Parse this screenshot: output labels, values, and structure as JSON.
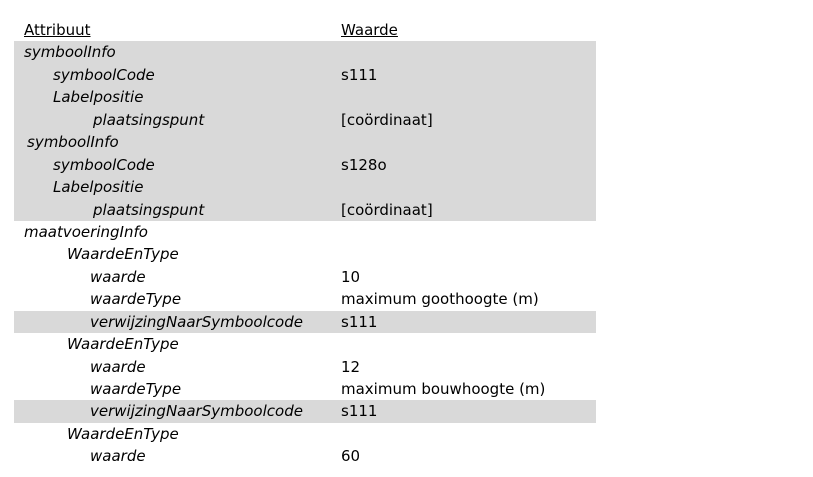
{
  "header": {
    "attribute_label": "Attribuut",
    "value_label": "Waarde"
  },
  "rows": [
    {
      "attr": "symboolInfo",
      "value": ""
    },
    {
      "attr": "symboolCode",
      "value": "s111"
    },
    {
      "attr": "Labelpositie",
      "value": ""
    },
    {
      "attr": "plaatsingspunt",
      "value": "[coördinaat]"
    },
    {
      "attr": "symboolInfo",
      "value": ""
    },
    {
      "attr": "symboolCode",
      "value": "s128o"
    },
    {
      "attr": "Labelpositie",
      "value": ""
    },
    {
      "attr": "plaatsingspunt",
      "value": "[coördinaat]"
    },
    {
      "attr": "maatvoeringInfo",
      "value": ""
    },
    {
      "attr": "WaardeEnType",
      "value": ""
    },
    {
      "attr": "waarde",
      "value": "10"
    },
    {
      "attr": "waardeType",
      "value": "maximum goothoogte (m)"
    },
    {
      "attr": "verwijzingNaarSymboolcode",
      "value": "s111"
    },
    {
      "attr": "WaardeEnType",
      "value": ""
    },
    {
      "attr": "waarde",
      "value": "12"
    },
    {
      "attr": "waardeType",
      "value": "maximum bouwhoogte (m)"
    },
    {
      "attr": "verwijzingNaarSymboolcode",
      "value": "s111"
    },
    {
      "attr": "WaardeEnType",
      "value": ""
    },
    {
      "attr": "waarde",
      "value": "60"
    }
  ]
}
